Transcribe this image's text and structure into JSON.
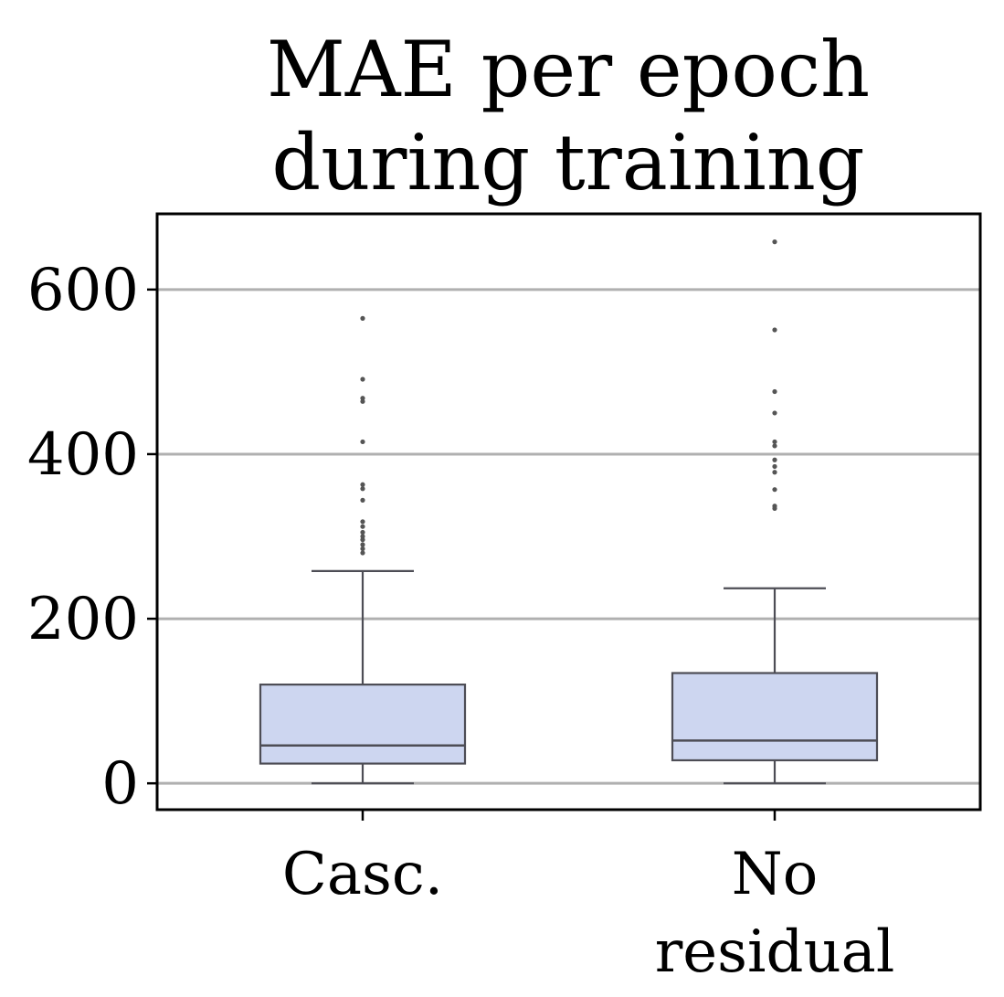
{
  "chart_data": {
    "type": "box",
    "title_lines": [
      "MAE per epoch",
      "during training"
    ],
    "xlabel": "",
    "ylabel": "",
    "ylim": [
      -32,
      692
    ],
    "yticks": [
      0,
      200,
      400,
      600
    ],
    "ytick_labels": [
      "0",
      "200",
      "400",
      "600"
    ],
    "grid": "horizontal",
    "legend": "none",
    "colors": {
      "box_fill": "#cdd6f0",
      "box_edge": "#4d4d55",
      "grid": "#b0b0b0",
      "outlier": "#555555",
      "frame": "#000000"
    },
    "categories": [
      {
        "label_lines": [
          "Casc."
        ]
      },
      {
        "label_lines": [
          "No",
          "residual"
        ]
      }
    ],
    "boxes": [
      {
        "whisker_low": 0,
        "q1": 24,
        "median": 46,
        "q3": 120,
        "whisker_high": 258,
        "outliers": [
          565,
          491,
          468,
          464,
          415,
          363,
          358,
          344,
          318,
          312,
          305,
          300,
          296,
          290,
          285,
          280
        ]
      },
      {
        "whisker_low": 0,
        "q1": 28,
        "median": 52,
        "q3": 134,
        "whisker_high": 237,
        "outliers": [
          658,
          551,
          476,
          450,
          415,
          410,
          393,
          385,
          378,
          357,
          337,
          334
        ]
      }
    ]
  }
}
